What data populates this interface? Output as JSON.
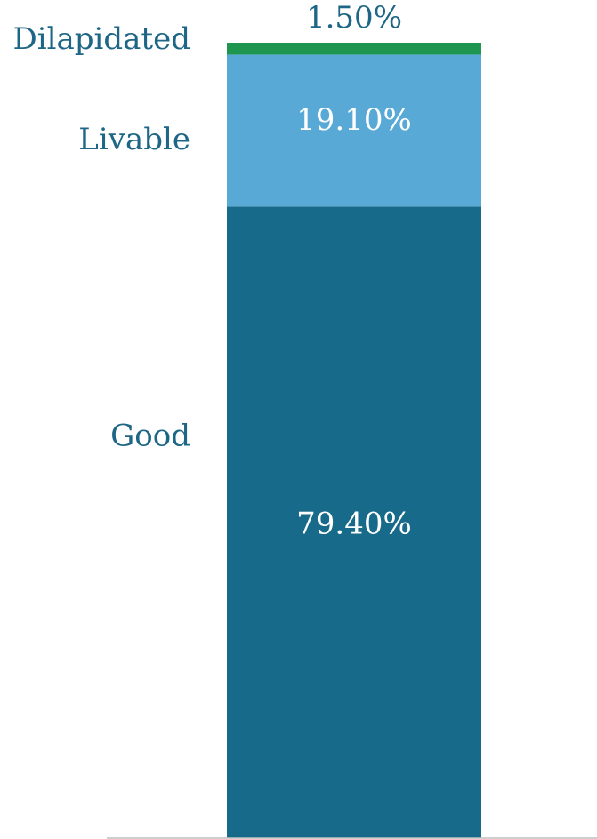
{
  "chart_data": {
    "type": "bar",
    "stacked": true,
    "orientation": "vertical",
    "ylim": [
      0,
      100
    ],
    "units": "%",
    "legend": "none",
    "grid": false,
    "series": [
      {
        "name": "Good",
        "value": 79.4,
        "label": "79.40%",
        "color": "#186a8a"
      },
      {
        "name": "Livable",
        "value": 19.1,
        "label": "19.10%",
        "color": "#58a9d6"
      },
      {
        "name": "Dilapidated",
        "value": 1.5,
        "label": "1.50%",
        "color": "#1e9650"
      }
    ],
    "category_label_color": "#1d6685",
    "value_label_colors": {
      "inside": "#ffffff",
      "outside": "#1d6685"
    }
  }
}
